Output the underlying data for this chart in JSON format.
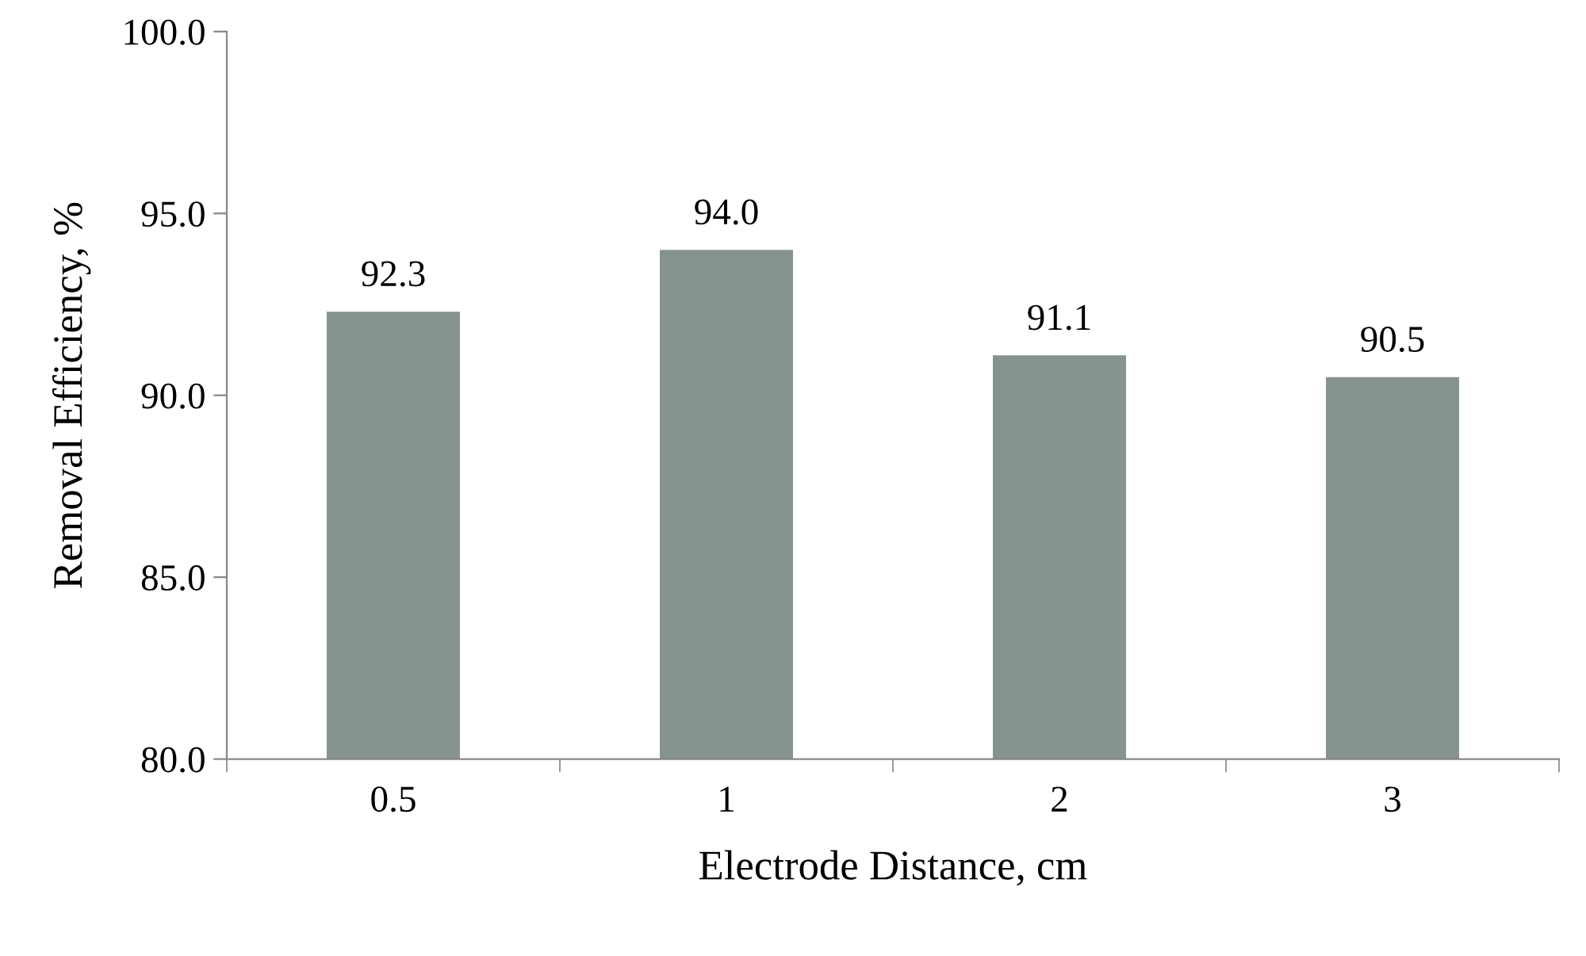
{
  "chart_data": {
    "type": "bar",
    "xlabel": "Electrode Distance, cm",
    "ylabel": "Removal Efficiency, %",
    "categories": [
      "0.5",
      "1",
      "2",
      "3"
    ],
    "values": [
      92.3,
      94.0,
      91.1,
      90.5
    ],
    "color": "#87938f",
    "ylim": [
      80,
      100
    ],
    "yticks": [
      {
        "value": 80,
        "label": "80.0"
      },
      {
        "value": 85,
        "label": "85.0"
      },
      {
        "value": 90,
        "label": "90.0"
      },
      {
        "value": 95,
        "label": "95.0"
      },
      {
        "value": 100,
        "label": "100.0"
      }
    ],
    "value_labels": [
      "92.3",
      "94.0",
      "91.1",
      "90.5"
    ],
    "grid": false,
    "legend": false
  }
}
